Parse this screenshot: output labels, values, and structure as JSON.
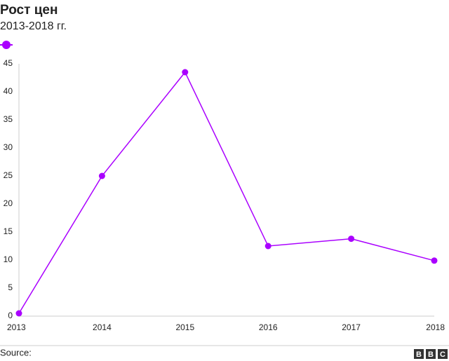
{
  "chart_data": {
    "type": "line",
    "title": "Рост цен",
    "subtitle": "2013-2018 гг.",
    "categories": [
      "2013",
      "2014",
      "2015",
      "2016",
      "2017",
      "2018"
    ],
    "series": [
      {
        "color": "#aa00ff",
        "values": [
          0.5,
          25,
          43.5,
          12.5,
          13.8,
          9.9
        ]
      }
    ],
    "ylim": [
      0,
      45
    ],
    "yticks": [
      0,
      5,
      10,
      15,
      20,
      25,
      30,
      35,
      40,
      45
    ],
    "grid": false,
    "source": "Source:",
    "logo": [
      "B",
      "B",
      "C"
    ]
  }
}
